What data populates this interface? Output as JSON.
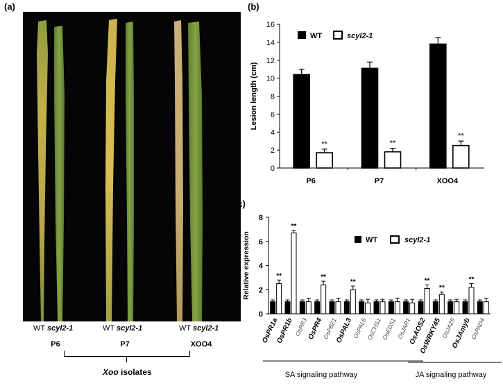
{
  "panel_a": {
    "label": "(a)",
    "groups": [
      {
        "wt": "WT",
        "mutant": "scyl2-1",
        "isolate": "P6"
      },
      {
        "wt": "WT",
        "mutant": "scyl2-1",
        "isolate": "P7"
      },
      {
        "wt": "WT",
        "mutant": "scyl2-1",
        "isolate": "XOO4"
      }
    ],
    "bracket_label_italic": "Xoo",
    "bracket_label_rest": " isolates"
  },
  "colors": {
    "wt": "#000000",
    "mutant": "#ffffff",
    "leaf_green": "#7a9a3a",
    "leaf_yellow": "#c9b24a",
    "photo_bg": "#050505"
  },
  "chart_data": [
    {
      "type": "bar",
      "panel": "(b)",
      "categories": [
        "P6",
        "P7",
        "XOO4"
      ],
      "ylabel": "Lesion length (cm)",
      "ylim": [
        0,
        16
      ],
      "yticks": [
        0,
        2,
        4,
        6,
        8,
        10,
        12,
        14,
        16
      ],
      "series": [
        {
          "name": "WT",
          "values": [
            10.4,
            11.1,
            13.8
          ],
          "errors": [
            0.6,
            0.7,
            0.7
          ]
        },
        {
          "name": "scyl2-1",
          "values": [
            1.7,
            1.8,
            2.5
          ],
          "errors": [
            0.4,
            0.4,
            0.5
          ]
        }
      ],
      "significance": [
        "**",
        "**",
        "**"
      ],
      "legend_position": "top-left"
    },
    {
      "type": "bar",
      "panel": "(c)",
      "categories": [
        "OsPR1a",
        "OsPR1b",
        "OsPR3",
        "OsPR4",
        "OsPBZ1",
        "OsPAL3",
        "OsPAL6",
        "OsCHS1",
        "OsEDS1",
        "OsJAR1",
        "OsAOS2",
        "OsWRKY45",
        "OsJAZ6",
        "OsJAmyb",
        "OsPAD4"
      ],
      "category_bold": [
        true,
        true,
        false,
        true,
        false,
        true,
        false,
        false,
        false,
        false,
        true,
        true,
        false,
        true,
        false
      ],
      "ylabel": "Relative expression",
      "ylim": [
        0,
        8
      ],
      "yticks": [
        0,
        2,
        4,
        6,
        8
      ],
      "series": [
        {
          "name": "WT",
          "values": [
            1,
            1,
            1,
            1,
            1,
            1,
            1,
            1,
            1,
            1,
            1,
            1,
            1,
            1,
            1
          ],
          "errors": [
            0.15,
            0.15,
            0.15,
            0.15,
            0.15,
            0.15,
            0.15,
            0.15,
            0.15,
            0.15,
            0.15,
            0.15,
            0.15,
            0.15,
            0.15
          ]
        },
        {
          "name": "scyl2-1",
          "values": [
            2.5,
            6.7,
            1.0,
            2.4,
            1.0,
            2.0,
            0.9,
            1.0,
            1.0,
            0.9,
            2.1,
            1.6,
            1.0,
            2.2,
            1.0
          ],
          "errors": [
            0.3,
            0.2,
            0.3,
            0.3,
            0.3,
            0.3,
            0.3,
            0.2,
            0.3,
            0.3,
            0.3,
            0.2,
            0.2,
            0.3,
            0.3
          ]
        }
      ],
      "significance": [
        "**",
        "**",
        "",
        "**",
        "",
        "**",
        "",
        "",
        "",
        "",
        "**",
        "**",
        "",
        "**",
        ""
      ],
      "pathways": [
        {
          "label": "SA signaling pathway"
        },
        {
          "label": "JA signaling pathway"
        }
      ],
      "legend_position": "top-center"
    }
  ]
}
